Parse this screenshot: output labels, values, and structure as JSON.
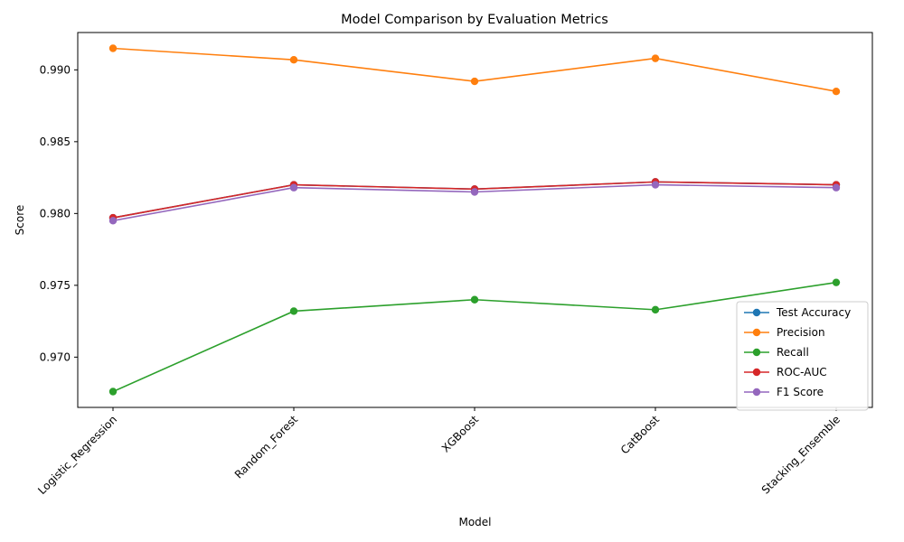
{
  "chart_data": {
    "type": "line",
    "title": "Model Comparison by Evaluation Metrics",
    "xlabel": "Model",
    "ylabel": "Score",
    "categories": [
      "Logistic_Regression",
      "Random_Forest",
      "XGBoost",
      "CatBoost",
      "Stacking_Ensemble"
    ],
    "ylim": [
      0.9665,
      0.9926
    ],
    "yticks": [
      0.97,
      0.975,
      0.98,
      0.985,
      0.99
    ],
    "ytick_labels": [
      "0.970",
      "0.975",
      "0.980",
      "0.985",
      "0.990"
    ],
    "grid": false,
    "legend_position": "lower-right",
    "marker": "circle",
    "series": [
      {
        "name": "Test Accuracy",
        "color": "#1f77b4",
        "values": [
          0.9797,
          0.982,
          0.9817,
          0.9822,
          0.982
        ]
      },
      {
        "name": "Precision",
        "color": "#ff7f0e",
        "values": [
          0.9915,
          0.9907,
          0.9892,
          0.9908,
          0.9885
        ]
      },
      {
        "name": "Recall",
        "color": "#2ca02c",
        "values": [
          0.9676,
          0.9732,
          0.974,
          0.9733,
          0.9752
        ]
      },
      {
        "name": "ROC-AUC",
        "color": "#d62728",
        "values": [
          0.9797,
          0.982,
          0.9817,
          0.9822,
          0.982
        ]
      },
      {
        "name": "F1 Score",
        "color": "#9467bd",
        "values": [
          0.9795,
          0.9818,
          0.9815,
          0.982,
          0.9818
        ]
      }
    ]
  }
}
